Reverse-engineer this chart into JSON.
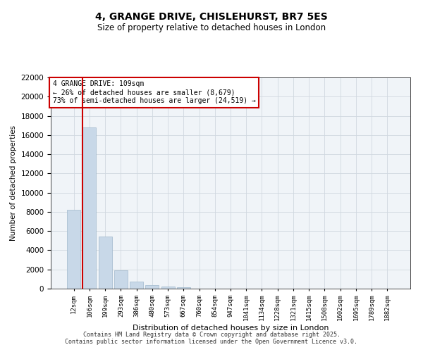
{
  "title_line1": "4, GRANGE DRIVE, CHISLEHURST, BR7 5ES",
  "title_line2": "Size of property relative to detached houses in London",
  "xlabel": "Distribution of detached houses by size in London",
  "ylabel": "Number of detached properties",
  "bar_color": "#c8d8e8",
  "bar_edgecolor": "#a0b8cc",
  "bg_color": "#f0f4f8",
  "grid_color": "#d0d8e0",
  "vline_color": "#cc0000",
  "vline_x_index": 1,
  "annotation_text": "4 GRANGE DRIVE: 109sqm\n← 26% of detached houses are smaller (8,679)\n73% of semi-detached houses are larger (24,519) →",
  "annotation_box_color": "#cc0000",
  "categories": [
    "12sqm",
    "106sqm",
    "199sqm",
    "293sqm",
    "386sqm",
    "480sqm",
    "573sqm",
    "667sqm",
    "760sqm",
    "854sqm",
    "947sqm",
    "1041sqm",
    "1134sqm",
    "1228sqm",
    "1321sqm",
    "1415sqm",
    "1508sqm",
    "1602sqm",
    "1695sqm",
    "1789sqm",
    "1882sqm"
  ],
  "values": [
    8200,
    16800,
    5400,
    1900,
    700,
    350,
    200,
    130,
    0,
    0,
    0,
    0,
    0,
    0,
    0,
    0,
    0,
    0,
    0,
    0,
    0
  ],
  "ylim": [
    0,
    22000
  ],
  "yticks": [
    0,
    2000,
    4000,
    6000,
    8000,
    10000,
    12000,
    14000,
    16000,
    18000,
    20000,
    22000
  ],
  "footer_line1": "Contains HM Land Registry data © Crown copyright and database right 2025.",
  "footer_line2": "Contains public sector information licensed under the Open Government Licence v3.0."
}
